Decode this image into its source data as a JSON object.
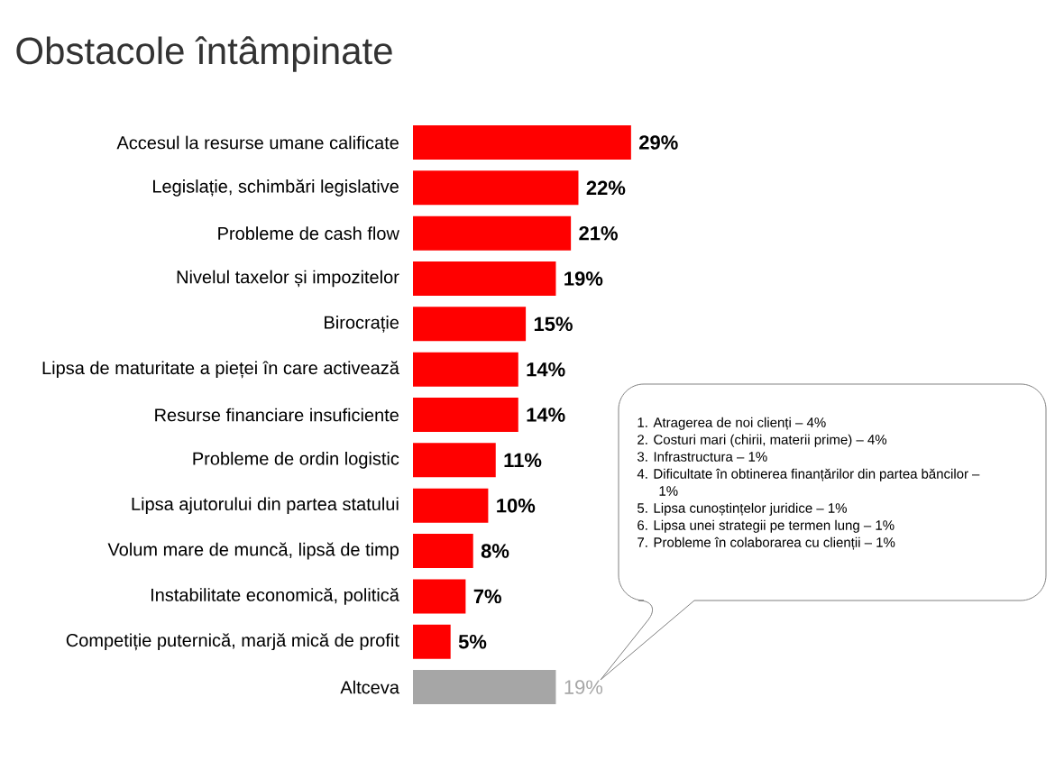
{
  "chart_data": {
    "type": "bar",
    "orientation": "horizontal",
    "title": "Obstacole întâmpinate",
    "categories": [
      "Accesul la resurse umane calificate",
      "Legislație, schimbări legislative",
      "Probleme de cash flow",
      "Nivelul taxelor și impozitelor",
      "Birocrație",
      "Lipsa de maturitate a pieței în care activează",
      "Resurse financiare insuficiente",
      "Probleme de ordin logistic",
      "Lipsa ajutorului din partea statului",
      "Volum mare de muncă, lipsă de timp",
      "Instabilitate economică, politică",
      "Competiție puternică, marjă mică de profit",
      "Altceva"
    ],
    "values": [
      29,
      22,
      21,
      19,
      15,
      14,
      14,
      11,
      10,
      8,
      7,
      5,
      19
    ],
    "value_labels": [
      "29%",
      "22%",
      "21%",
      "19%",
      "15%",
      "14%",
      "14%",
      "11%",
      "10%",
      "8%",
      "7%",
      "5%",
      "19%"
    ],
    "colors": [
      "#ff0000",
      "#ff0000",
      "#ff0000",
      "#ff0000",
      "#ff0000",
      "#ff0000",
      "#ff0000",
      "#ff0000",
      "#ff0000",
      "#ff0000",
      "#ff0000",
      "#ff0000",
      "#a6a6a6"
    ],
    "annotations": [
      "1. Atragerea de noi clienți – 4%",
      "2. Costuri mari (chirii, materii prime) – 4%",
      "3. Infrastructura – 1%",
      "4. Dificultate în obtinerea finanțărilor din partea băncilor – 1%",
      "5. Lipsa cunoștințelor juridice – 1%",
      "6. Lipsa unei strategii pe termen lung – 1%",
      "7. Probleme în colaborarea cu clienții – 1%"
    ]
  }
}
